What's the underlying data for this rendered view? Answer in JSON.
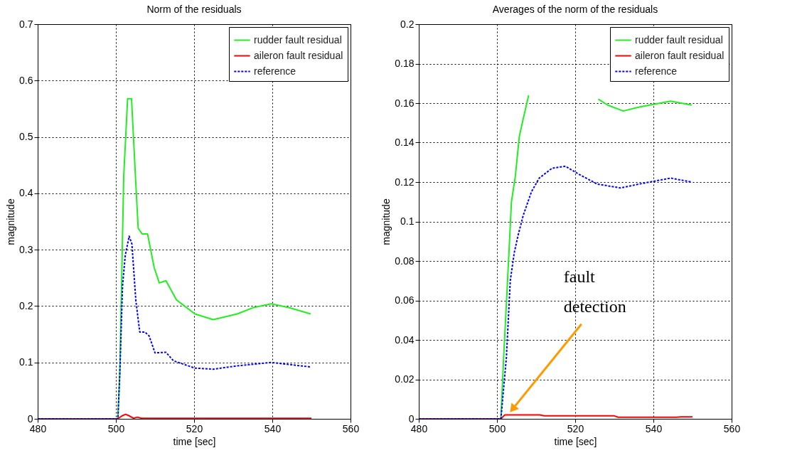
{
  "chart_data": [
    {
      "type": "line",
      "title": "Norm of the residuals",
      "xlabel": "time [sec]",
      "ylabel": "magnitude",
      "xlim": [
        480,
        560
      ],
      "xticks": [
        480,
        500,
        520,
        540,
        560
      ],
      "ylim": [
        0,
        0.7
      ],
      "yticks": [
        0,
        0.1,
        0.2,
        0.3,
        0.4,
        0.5,
        0.6,
        0.7
      ],
      "grid": true,
      "legend": "top right",
      "series": [
        {
          "name": "rudder fault residual",
          "color": "#22ee22",
          "line_style": "solid",
          "x": [
            480,
            500,
            500.5,
            501,
            502,
            503,
            504,
            505,
            505.7,
            506.7,
            508.1,
            509.8,
            511.1,
            512.8,
            515.5,
            520.2,
            524.9,
            531,
            535,
            539.7,
            544.4,
            549.8
          ],
          "values": [
            0,
            0,
            0,
            0.08,
            0.43,
            0.568,
            0.568,
            0.43,
            0.338,
            0.328,
            0.328,
            0.268,
            0.241,
            0.245,
            0.211,
            0.186,
            0.176,
            0.186,
            0.197,
            0.204,
            0.197,
            0.186
          ]
        },
        {
          "name": "aileron fault residual",
          "color": "#ff0000",
          "line_style": "solid",
          "x": [
            480,
            500.5,
            501.5,
            502.5,
            503.5,
            504.5,
            505.5,
            506.5,
            550
          ],
          "values": [
            0,
            0,
            0.005,
            0.008,
            0.005,
            0.001,
            0.003,
            0.001,
            0.001
          ]
        },
        {
          "name": "reference",
          "color": "#0000ff",
          "line_style": "dashed",
          "x": [
            480,
            500,
            500.5,
            501,
            501.7,
            502.4,
            503.4,
            504.1,
            505.1,
            506.1,
            507.4,
            508.5,
            510,
            512.8,
            514.7,
            520.2,
            524.9,
            531,
            539.7,
            549.8
          ],
          "values": [
            0,
            0,
            0,
            0.08,
            0.236,
            0.29,
            0.324,
            0.31,
            0.21,
            0.154,
            0.154,
            0.147,
            0.117,
            0.118,
            0.103,
            0.09,
            0.088,
            0.094,
            0.1,
            0.092
          ]
        }
      ]
    },
    {
      "type": "line",
      "title": "Averages of the norm of the residuals",
      "xlabel": "time [sec]",
      "ylabel": "magnitude",
      "xlim": [
        480,
        560
      ],
      "xticks": [
        480,
        500,
        520,
        540,
        560
      ],
      "ylim": [
        0,
        0.2
      ],
      "yticks": [
        0,
        0.02,
        0.04,
        0.06,
        0.08,
        0.1,
        0.12,
        0.14,
        0.16,
        0.18,
        0.2
      ],
      "grid": true,
      "legend": "top right",
      "annotations": [
        "fault detection"
      ],
      "series": [
        {
          "name": "rudder fault residual",
          "color": "#22ee22",
          "line_style": "solid",
          "x": [
            480,
            500.5,
            501,
            501.7,
            502.7,
            503.7,
            504.7,
            505.7,
            506.7,
            508.1,
            517,
            525.9,
            528.3,
            532.3,
            536.4,
            544.4,
            549.8
          ],
          "values": [
            0,
            0,
            0,
            0.031,
            0.07,
            0.11,
            0.123,
            0.143,
            0.152,
            0.164,
            null,
            0.162,
            0.159,
            0.156,
            0.158,
            0.161,
            0.159
          ]
        },
        {
          "name": "aileron fault residual",
          "color": "#ff0000",
          "line_style": "solid",
          "x": [
            480,
            501,
            502,
            511,
            512,
            530,
            531,
            546,
            547,
            550
          ],
          "values": [
            0,
            0,
            0.002,
            0.002,
            0.0015,
            0.0015,
            0.0008,
            0.0008,
            0.001,
            0.001
          ]
        },
        {
          "name": "reference",
          "color": "#0000ff",
          "line_style": "dashed",
          "x": [
            480,
            500.5,
            501,
            502.4,
            503.4,
            504.4,
            505.4,
            506.7,
            508.8,
            510.8,
            514.1,
            517.5,
            520.9,
            525.6,
            531.6,
            536.4,
            544.4,
            549.8
          ],
          "values": [
            0,
            0,
            0,
            0.031,
            0.07,
            0.084,
            0.093,
            0.103,
            0.115,
            0.122,
            0.127,
            0.128,
            0.124,
            0.119,
            0.117,
            0.119,
            0.122,
            0.12
          ]
        }
      ]
    }
  ]
}
